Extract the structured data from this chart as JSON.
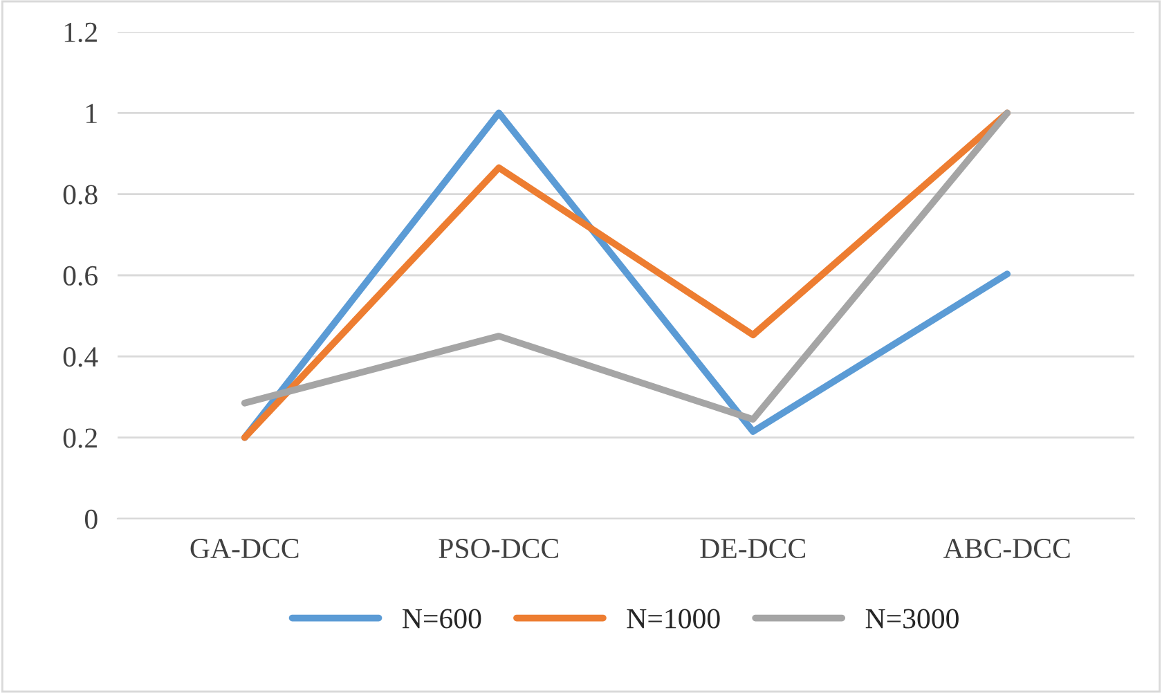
{
  "chart_data": {
    "type": "line",
    "categories": [
      "GA-DCC",
      "PSO-DCC",
      "DE-DCC",
      "ABC-DCC"
    ],
    "series": [
      {
        "name": "N=600",
        "color": "#5b9bd5",
        "values": [
          0.2,
          1.0,
          0.215,
          0.603
        ]
      },
      {
        "name": "N=1000",
        "color": "#ed7d31",
        "values": [
          0.2,
          0.865,
          0.453,
          1.0
        ]
      },
      {
        "name": "N=3000",
        "color": "#a5a5a5",
        "values": [
          0.285,
          0.45,
          0.245,
          1.0
        ]
      }
    ],
    "ylim": [
      0,
      1.2
    ],
    "yticks": [
      0,
      {
        "value": 0.2,
        "label": "0.2"
      },
      {
        "value": 0.4,
        "label": "0.4"
      },
      {
        "value": 0.6,
        "label": "0.6"
      },
      {
        "value": 0.8,
        "label": "0.8"
      },
      1,
      {
        "value": 1.2,
        "label": "1.2"
      }
    ],
    "grid": "y",
    "legend": "bottom",
    "marker": "none",
    "line_style": "solid"
  }
}
